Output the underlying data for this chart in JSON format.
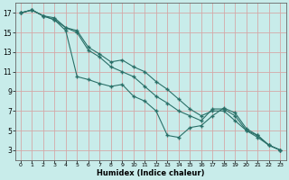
{
  "xlabel": "Humidex (Indice chaleur)",
  "bg_color": "#c8ecea",
  "grid_color": "#d4a8a8",
  "line_color": "#2a7068",
  "xlim": [
    -0.5,
    23.5
  ],
  "ylim": [
    2.0,
    18.0
  ],
  "xticks": [
    0,
    1,
    2,
    3,
    4,
    5,
    6,
    7,
    8,
    9,
    10,
    11,
    12,
    13,
    14,
    15,
    16,
    17,
    18,
    19,
    20,
    21,
    22,
    23
  ],
  "yticks": [
    3,
    5,
    7,
    9,
    11,
    13,
    15,
    17
  ],
  "line1_x": [
    0,
    1,
    2,
    3,
    4,
    5,
    6,
    7,
    8,
    9,
    10,
    11,
    12,
    13,
    14,
    15,
    16,
    17,
    18,
    19,
    20,
    21,
    22,
    23
  ],
  "line1_y": [
    17.0,
    17.3,
    16.7,
    16.3,
    15.2,
    10.5,
    10.2,
    9.8,
    9.5,
    9.7,
    8.5,
    8.0,
    7.0,
    4.5,
    4.3,
    5.3,
    5.5,
    6.5,
    7.3,
    6.8,
    5.2,
    4.5,
    3.5,
    3.0
  ],
  "line2_x": [
    0,
    1,
    2,
    3,
    4,
    5,
    6,
    7,
    8,
    9,
    10,
    11,
    12,
    13,
    14,
    15,
    16,
    17,
    18,
    19,
    20,
    21,
    22,
    23
  ],
  "line2_y": [
    17.0,
    17.3,
    16.7,
    16.3,
    15.5,
    15.0,
    13.2,
    12.5,
    11.5,
    11.0,
    10.5,
    9.5,
    8.5,
    7.8,
    7.0,
    6.5,
    6.0,
    7.2,
    7.2,
    6.5,
    5.0,
    4.5,
    3.5,
    3.0
  ],
  "line3_x": [
    0,
    1,
    2,
    3,
    4,
    5,
    6,
    7,
    8,
    9,
    10,
    11,
    12,
    13,
    14,
    15,
    16,
    17,
    18,
    19,
    20,
    21,
    22,
    23
  ],
  "line3_y": [
    17.0,
    17.3,
    16.7,
    16.5,
    15.5,
    15.2,
    13.5,
    12.8,
    12.0,
    12.2,
    11.5,
    11.0,
    10.0,
    9.2,
    8.2,
    7.2,
    6.5,
    7.0,
    7.0,
    6.0,
    5.0,
    4.3,
    3.5,
    3.0
  ]
}
